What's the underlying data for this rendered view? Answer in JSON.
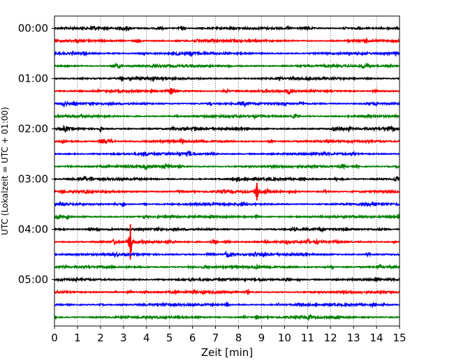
{
  "chart_data": {
    "type": "line",
    "title": "",
    "xlabel": "Zeit  [min]",
    "ylabel": "UTC (Lokalzeit = UTC + 01:00)",
    "xlim": [
      0,
      15
    ],
    "x_ticks": [
      "0",
      "1",
      "2",
      "3",
      "4",
      "5",
      "6",
      "7",
      "8",
      "9",
      "10",
      "11",
      "12",
      "13",
      "14",
      "15"
    ],
    "y_tick_labels": [
      "00:00",
      "01:00",
      "02:00",
      "03:00",
      "04:00",
      "05:00"
    ],
    "grid": "vertical dotted at each minute",
    "trace_interval_minutes": 15,
    "trace_count": 24,
    "color_cycle": [
      "#000000",
      "#ff0000",
      "#0000ff",
      "#008000"
    ],
    "events": [
      {
        "trace": 0,
        "minute": 1.7,
        "amp": 0.55
      },
      {
        "trace": 3,
        "minute": 13.6,
        "amp": 0.45
      },
      {
        "trace": 8,
        "minute": 2.0,
        "amp": 0.45
      },
      {
        "trace": 8,
        "minute": 6.1,
        "amp": 0.5
      },
      {
        "trace": 12,
        "minute": 1.6,
        "amp": 0.4
      },
      {
        "trace": 13,
        "minute": 8.8,
        "amp": 1.4
      },
      {
        "trace": 14,
        "minute": 3.0,
        "amp": 0.55
      },
      {
        "trace": 14,
        "minute": 13.5,
        "amp": 0.45
      },
      {
        "trace": 15,
        "minute": 8.8,
        "amp": 0.35
      },
      {
        "trace": 17,
        "minute": 3.3,
        "amp": 2.8
      },
      {
        "trace": 17,
        "minute": 11.0,
        "amp": 0.55
      },
      {
        "trace": 17,
        "minute": 2.6,
        "amp": 0.5
      },
      {
        "trace": 18,
        "minute": 7.5,
        "amp": 0.55
      },
      {
        "trace": 20,
        "minute": 14.0,
        "amp": 0.45
      },
      {
        "trace": 21,
        "minute": 8.4,
        "amp": 0.4
      },
      {
        "trace": 23,
        "minute": 12.3,
        "amp": 0.4
      }
    ]
  }
}
